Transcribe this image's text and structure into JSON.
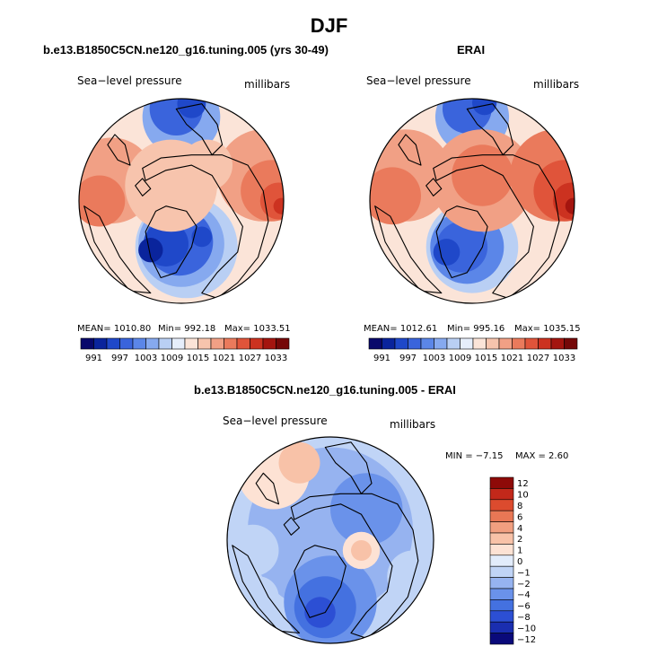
{
  "figure": {
    "title": "DJF"
  },
  "panels": [
    {
      "title": "b.e13.B1850C5CN.ne120_g16.tuning.005 (yrs 30-49)",
      "left_label": "Sea−level pressure",
      "right_label": "millibars",
      "stats": {
        "mean": "MEAN= 1010.80",
        "min": "Min= 992.18",
        "max": "Max= 1033.51"
      }
    },
    {
      "title": "ERAI",
      "left_label": "Sea−level pressure",
      "right_label": "millibars",
      "stats": {
        "mean": "MEAN= 1012.61",
        "min": "Min= 995.16",
        "max": "Max= 1035.15"
      }
    },
    {
      "title": "b.e13.B1850C5CN.ne120_g16.tuning.005 - ERAI",
      "left_label": "Sea−level pressure",
      "right_label": "millibars",
      "stats": {
        "min": "MIN = −7.15",
        "max": "MAX =   2.60"
      }
    }
  ],
  "colors": {
    "slp_palette": [
      "#08086b",
      "#0a249c",
      "#1f48c9",
      "#3a64dc",
      "#5b86e8",
      "#86a9ef",
      "#b9cff4",
      "#e6eefb",
      "#fbe4d8",
      "#f7c4ad",
      "#f1a085",
      "#ea7a5c",
      "#e0543a",
      "#cc3220",
      "#a4150f",
      "#750808"
    ],
    "diff_palette": [
      "#0a0a7a",
      "#1a2eb0",
      "#2c4fd4",
      "#4471e0",
      "#6a92ea",
      "#96b3f0",
      "#c0d4f6",
      "#e2ecfb",
      "#fde2d4",
      "#f8c2a8",
      "#f19f80",
      "#e87755",
      "#dc4b2e",
      "#c2281a",
      "#8e0a08"
    ]
  },
  "chart_data": [
    {
      "type": "heatmap",
      "title": "b.e13.B1850C5CN.ne120_g16.tuning.005 (yrs 30-49)",
      "field": "Sea−level pressure",
      "units": "millibars",
      "projection": "polar-stereographic",
      "stats": {
        "mean": 1010.8,
        "min": 992.18,
        "max": 1033.51
      },
      "colorbar": {
        "orientation": "horizontal",
        "tick_labels": [
          "991",
          "997",
          "1003",
          "1009",
          "1015",
          "1021",
          "1027",
          "1033"
        ],
        "levels": [
          991,
          994,
          997,
          1000,
          1003,
          1006,
          1009,
          1012,
          1015,
          1018,
          1021,
          1024,
          1027,
          1030,
          1033
        ]
      },
      "regions": [
        {
          "cx": 0.05,
          "cy": -0.45,
          "r": 0.5,
          "level": 6
        },
        {
          "cx": 0.0,
          "cy": -0.42,
          "r": 0.42,
          "level": 5
        },
        {
          "cx": -0.02,
          "cy": -0.4,
          "r": 0.33,
          "level": 3
        },
        {
          "cx": -0.15,
          "cy": -0.42,
          "r": 0.22,
          "level": 2
        },
        {
          "cx": -0.3,
          "cy": -0.48,
          "r": 0.12,
          "level": 1
        },
        {
          "cx": 0.2,
          "cy": -0.35,
          "r": 0.1,
          "level": 2
        },
        {
          "cx": 0.0,
          "cy": 0.82,
          "r": 0.38,
          "level": 5
        },
        {
          "cx": -0.05,
          "cy": 0.9,
          "r": 0.26,
          "level": 3
        },
        {
          "cx": 0.1,
          "cy": 0.95,
          "r": 0.14,
          "level": 2
        },
        {
          "cx": -0.68,
          "cy": 0.2,
          "r": 0.42,
          "level": 10
        },
        {
          "cx": -0.8,
          "cy": 0.0,
          "r": 0.25,
          "level": 11
        },
        {
          "cx": 0.8,
          "cy": 0.25,
          "r": 0.45,
          "level": 10
        },
        {
          "cx": 0.88,
          "cy": 0.1,
          "r": 0.3,
          "level": 11
        },
        {
          "cx": 0.95,
          "cy": 0.0,
          "r": 0.18,
          "level": 12
        },
        {
          "cx": 0.98,
          "cy": -0.05,
          "r": 0.08,
          "level": 13
        },
        {
          "cx": -0.1,
          "cy": 0.15,
          "r": 0.45,
          "level": 9
        },
        {
          "cx": 0.25,
          "cy": 0.35,
          "r": 0.25,
          "level": 9
        }
      ]
    },
    {
      "type": "heatmap",
      "title": "ERAI",
      "field": "Sea−level pressure",
      "units": "millibars",
      "projection": "polar-stereographic",
      "stats": {
        "mean": 1012.61,
        "min": 995.16,
        "max": 1035.15
      },
      "colorbar": {
        "orientation": "horizontal",
        "tick_labels": [
          "991",
          "997",
          "1003",
          "1009",
          "1015",
          "1021",
          "1027",
          "1033"
        ],
        "levels": [
          991,
          994,
          997,
          1000,
          1003,
          1006,
          1009,
          1012,
          1015,
          1018,
          1021,
          1024,
          1027,
          1030,
          1033
        ]
      },
      "regions": [
        {
          "cx": 0.0,
          "cy": -0.45,
          "r": 0.45,
          "level": 6
        },
        {
          "cx": -0.05,
          "cy": -0.45,
          "r": 0.36,
          "level": 4
        },
        {
          "cx": -0.1,
          "cy": -0.45,
          "r": 0.25,
          "level": 3
        },
        {
          "cx": -0.25,
          "cy": -0.5,
          "r": 0.13,
          "level": 2
        },
        {
          "cx": 0.0,
          "cy": 0.82,
          "r": 0.36,
          "level": 5
        },
        {
          "cx": -0.05,
          "cy": 0.9,
          "r": 0.24,
          "level": 3
        },
        {
          "cx": 0.12,
          "cy": 0.96,
          "r": 0.12,
          "level": 2
        },
        {
          "cx": -0.65,
          "cy": 0.25,
          "r": 0.45,
          "level": 10
        },
        {
          "cx": -0.78,
          "cy": 0.05,
          "r": 0.28,
          "level": 11
        },
        {
          "cx": 0.1,
          "cy": 0.2,
          "r": 0.5,
          "level": 10
        },
        {
          "cx": 0.1,
          "cy": 0.25,
          "r": 0.3,
          "level": 11
        },
        {
          "cx": 0.82,
          "cy": 0.25,
          "r": 0.45,
          "level": 11
        },
        {
          "cx": 0.9,
          "cy": 0.1,
          "r": 0.3,
          "level": 12
        },
        {
          "cx": 0.97,
          "cy": 0.0,
          "r": 0.18,
          "level": 13
        },
        {
          "cx": 0.99,
          "cy": -0.05,
          "r": 0.08,
          "level": 14
        }
      ]
    },
    {
      "type": "heatmap",
      "title": "b.e13.B1850C5CN.ne120_g16.tuning.005 - ERAI",
      "field": "Sea−level pressure",
      "units": "millibars",
      "projection": "polar-stereographic",
      "stats": {
        "min": -7.15,
        "max": 2.6
      },
      "colorbar": {
        "orientation": "vertical",
        "tick_labels": [
          "12",
          "10",
          "8",
          "6",
          "4",
          "2",
          "1",
          "0",
          "−1",
          "−2",
          "−4",
          "−6",
          "−8",
          "−10",
          "−12"
        ],
        "levels": [
          12,
          10,
          8,
          6,
          4,
          2,
          1,
          0,
          -1,
          -2,
          -4,
          -6,
          -8,
          -10,
          -12
        ]
      },
      "regions": [
        {
          "cx": 0.0,
          "cy": 0.1,
          "r": 0.8,
          "level": 5
        },
        {
          "cx": 0.35,
          "cy": 0.3,
          "r": 0.35,
          "level": 4
        },
        {
          "cx": 0.0,
          "cy": -0.6,
          "r": 0.45,
          "level": 4
        },
        {
          "cx": -0.05,
          "cy": -0.65,
          "r": 0.3,
          "level": 3
        },
        {
          "cx": -0.1,
          "cy": -0.7,
          "r": 0.15,
          "level": 2
        },
        {
          "cx": -0.55,
          "cy": 0.65,
          "r": 0.35,
          "level": 8
        },
        {
          "cx": -0.3,
          "cy": 0.75,
          "r": 0.2,
          "level": 9
        },
        {
          "cx": -0.75,
          "cy": -0.1,
          "r": 0.25,
          "level": 6
        },
        {
          "cx": 0.3,
          "cy": -0.1,
          "r": 0.18,
          "level": 8
        },
        {
          "cx": 0.3,
          "cy": -0.1,
          "r": 0.1,
          "level": 9
        },
        {
          "cx": 0.8,
          "cy": -0.35,
          "r": 0.25,
          "level": 6
        },
        {
          "cx": -0.7,
          "cy": -0.55,
          "r": 0.2,
          "level": 6
        }
      ]
    }
  ]
}
